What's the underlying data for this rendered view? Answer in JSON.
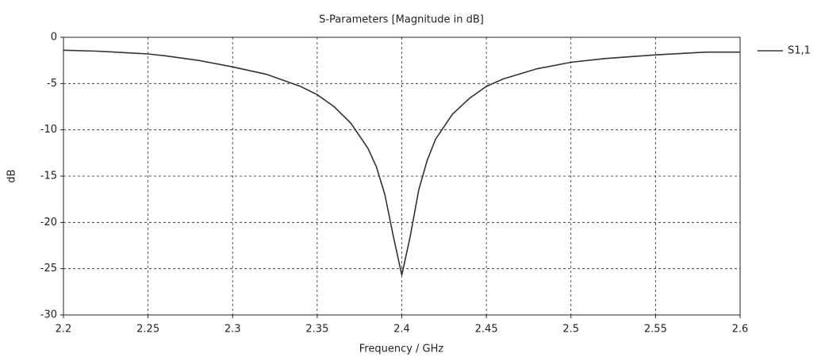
{
  "chart_data": {
    "type": "line",
    "title": "S-Parameters [Magnitude in dB]",
    "x_label": "Frequency / GHz",
    "y_label": "dB",
    "x": [
      2.2,
      2.22,
      2.24,
      2.25,
      2.26,
      2.28,
      2.3,
      2.32,
      2.34,
      2.35,
      2.36,
      2.37,
      2.38,
      2.385,
      2.39,
      2.395,
      2.4,
      2.405,
      2.41,
      2.415,
      2.42,
      2.43,
      2.44,
      2.45,
      2.46,
      2.48,
      2.5,
      2.52,
      2.55,
      2.58,
      2.6
    ],
    "series": [
      {
        "name": "S1,1",
        "color": "#333333",
        "values": [
          -1.4,
          -1.5,
          -1.7,
          -1.8,
          -2.0,
          -2.5,
          -3.2,
          -4.0,
          -5.3,
          -6.2,
          -7.5,
          -9.3,
          -12.0,
          -14.0,
          -17.0,
          -21.5,
          -25.7,
          -21.5,
          -16.5,
          -13.3,
          -11.0,
          -8.3,
          -6.6,
          -5.3,
          -4.5,
          -3.4,
          -2.7,
          -2.3,
          -1.9,
          -1.6,
          -1.6
        ]
      }
    ],
    "xlim": [
      2.2,
      2.6
    ],
    "xticks": [
      2.2,
      2.25,
      2.3,
      2.35,
      2.4,
      2.45,
      2.5,
      2.55,
      2.6
    ],
    "ylim": [
      -30,
      0
    ],
    "yticks": [
      0,
      -5,
      -10,
      -15,
      -20,
      -25,
      -30
    ],
    "grid": true,
    "legend": "right"
  }
}
